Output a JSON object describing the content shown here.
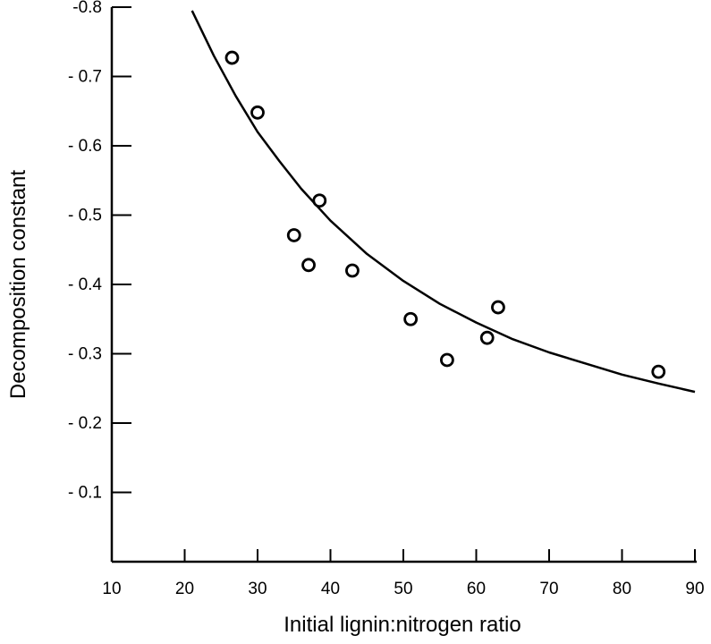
{
  "chart_data": {
    "type": "scatter",
    "title": "",
    "xlabel": "Initial lignin:nitrogen  ratio",
    "ylabel": "Decomposition constant",
    "xlim": [
      10,
      90
    ],
    "ylim": [
      0,
      -0.8
    ],
    "x_ticks": [
      10,
      20,
      30,
      40,
      50,
      60,
      70,
      80,
      90
    ],
    "x_tick_labels": [
      "10",
      "20",
      "30",
      "40",
      "50",
      "60",
      "70",
      "80",
      "90"
    ],
    "y_ticks": [
      -0.1,
      -0.2,
      -0.3,
      -0.4,
      -0.5,
      -0.6,
      -0.7,
      -0.8
    ],
    "y_tick_labels": [
      "- 0.1",
      "- 0.2",
      "- 0.3",
      "- 0.4",
      "- 0.5",
      "- 0.6",
      "- 0.7",
      "-0.8"
    ],
    "grid": false,
    "points": [
      {
        "x": 26.5,
        "y": -0.727
      },
      {
        "x": 30.0,
        "y": -0.648
      },
      {
        "x": 35.0,
        "y": -0.471
      },
      {
        "x": 37.0,
        "y": -0.428
      },
      {
        "x": 38.5,
        "y": -0.521
      },
      {
        "x": 43.0,
        "y": -0.42
      },
      {
        "x": 51.0,
        "y": -0.35
      },
      {
        "x": 56.0,
        "y": -0.291
      },
      {
        "x": 61.5,
        "y": -0.323
      },
      {
        "x": 63.0,
        "y": -0.367
      },
      {
        "x": 85.0,
        "y": -0.274
      }
    ],
    "fit_curve": {
      "type": "line",
      "x": [
        21,
        24,
        27,
        30,
        33,
        36,
        40,
        45,
        50,
        55,
        60,
        65,
        70,
        75,
        80,
        85,
        90
      ],
      "y": [
        -0.795,
        -0.73,
        -0.672,
        -0.62,
        -0.578,
        -0.538,
        -0.492,
        -0.444,
        -0.405,
        -0.372,
        -0.345,
        -0.321,
        -0.302,
        -0.286,
        -0.27,
        -0.257,
        -0.245
      ]
    }
  }
}
